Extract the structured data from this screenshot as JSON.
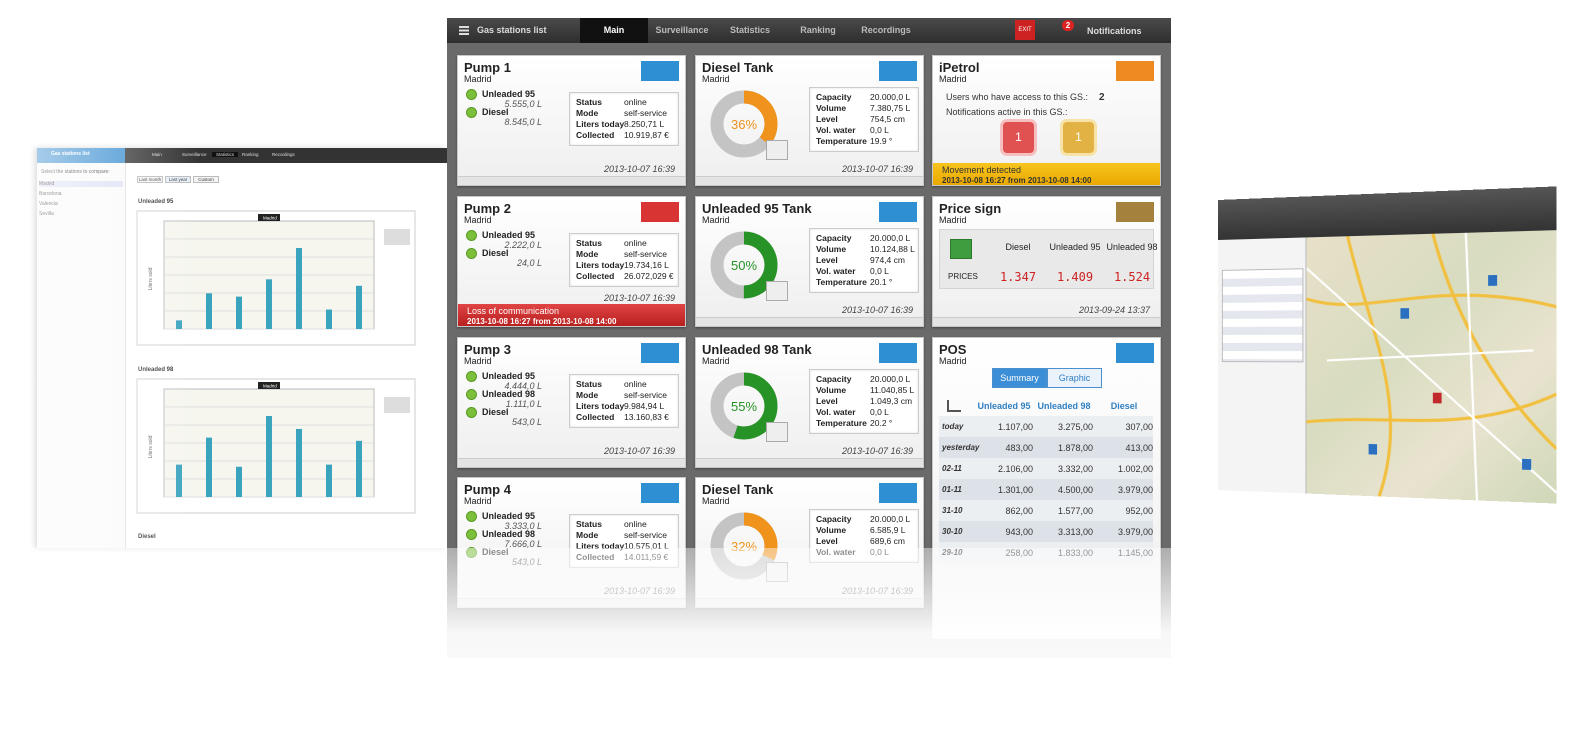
{
  "nav": {
    "title": "Gas stations list",
    "tabs": [
      "Main",
      "Surveillance",
      "Statistics",
      "Ranking",
      "Recordings"
    ],
    "exit": "EXIT",
    "notification_count": 2,
    "notifications": "Notifications"
  },
  "pumps": [
    {
      "title": "Pump 1",
      "location": "Madrid",
      "fuels": [
        {
          "name": "Unleaded 95",
          "amount": "5.555,0 L"
        },
        {
          "name": "Diesel",
          "amount": "8.545,0 L"
        }
      ],
      "stats": [
        [
          "Status",
          "online"
        ],
        [
          "Mode",
          "self-service"
        ],
        [
          "Liters today",
          "8.250,71 L"
        ],
        [
          "Collected",
          "10.919,87 €"
        ]
      ],
      "date": "2013-10-07 16:39"
    },
    {
      "title": "Pump 2",
      "location": "Madrid",
      "fuels": [
        {
          "name": "Unleaded 95",
          "amount": "2.222,0 L"
        },
        {
          "name": "Diesel",
          "amount": "24,0 L"
        }
      ],
      "stats": [
        [
          "Status",
          "online"
        ],
        [
          "Mode",
          "self-service"
        ],
        [
          "Liters today",
          "19.734,16 L"
        ],
        [
          "Collected",
          "26.072,029 €"
        ]
      ],
      "date": "2013-10-07 16:39",
      "alert": "Loss of communication",
      "alert_detail": "2013-10-08 16:27 from 2013-10-08 14:00"
    },
    {
      "title": "Pump 3",
      "location": "Madrid",
      "fuels": [
        {
          "name": "Unleaded 95",
          "amount": "4.444,0 L"
        },
        {
          "name": "Unleaded 98",
          "amount": "1.111,0 L"
        },
        {
          "name": "Diesel",
          "amount": "543,0 L"
        }
      ],
      "stats": [
        [
          "Status",
          "online"
        ],
        [
          "Mode",
          "self-service"
        ],
        [
          "Liters today",
          "9.984,94 L"
        ],
        [
          "Collected",
          "13.160,83 €"
        ]
      ],
      "date": "2013-10-07 16:39"
    },
    {
      "title": "Pump 4",
      "location": "Madrid",
      "fuels": [
        {
          "name": "Unleaded 95",
          "amount": "3.333,0 L"
        },
        {
          "name": "Unleaded 98",
          "amount": "7.666,0 L"
        },
        {
          "name": "Diesel",
          "amount": "543,0 L"
        }
      ],
      "stats": [
        [
          "Status",
          "online"
        ],
        [
          "Mode",
          "self-service"
        ],
        [
          "Liters today",
          "10.575,01 L"
        ],
        [
          "Collected",
          "14.011,59 €"
        ]
      ],
      "date": "2013-10-07 16:39"
    }
  ],
  "tanks": [
    {
      "title": "Diesel Tank",
      "location": "Madrid",
      "percent": 36,
      "percent_label": "36%",
      "color": "#ef931c",
      "stats": [
        [
          "Capacity",
          "20.000,0 L"
        ],
        [
          "Volume",
          "7.380,75 L"
        ],
        [
          "Level",
          "754,5 cm"
        ],
        [
          "Vol. water",
          "0,0 L"
        ],
        [
          "Temperature",
          "19.9 °"
        ]
      ],
      "date": "2013-10-07 16:39"
    },
    {
      "title": "Unleaded 95 Tank",
      "location": "Madrid",
      "percent": 50,
      "percent_label": "50%",
      "color": "#279327",
      "stats": [
        [
          "Capacity",
          "20.000,0 L"
        ],
        [
          "Volume",
          "10.124,88 L"
        ],
        [
          "Level",
          "974,4 cm"
        ],
        [
          "Vol. water",
          "0,0 L"
        ],
        [
          "Temperature",
          "20.1 °"
        ]
      ],
      "date": "2013-10-07 16:39"
    },
    {
      "title": "Unleaded 98 Tank",
      "location": "Madrid",
      "percent": 55,
      "percent_label": "55%",
      "color": "#279327",
      "stats": [
        [
          "Capacity",
          "20.000,0 L"
        ],
        [
          "Volume",
          "11.040,85 L"
        ],
        [
          "Level",
          "1.049,3 cm"
        ],
        [
          "Vol. water",
          "0,0 L"
        ],
        [
          "Temperature",
          "20.2 °"
        ]
      ],
      "date": "2013-10-07 16:39"
    },
    {
      "title": "Diesel Tank",
      "location": "Madrid",
      "percent": 32,
      "percent_label": "32%",
      "color": "#ef931c",
      "stats": [
        [
          "Capacity",
          "20.000,0 L"
        ],
        [
          "Volume",
          "6.585,9 L"
        ],
        [
          "Level",
          "689,6 cm"
        ],
        [
          "Vol. water",
          "0,0 L"
        ]
      ],
      "date": "2013-10-07 16:39"
    }
  ],
  "ipetrol": {
    "title": "iPetrol",
    "location": "Madrid",
    "users_label": "Users who have access to this GS.:",
    "users": 2,
    "notifications_label": "Notifications active in this GS.:",
    "badges": [
      1,
      1
    ],
    "alert": "Movement detected",
    "alert_detail": "2013-10-08 16:27 from 2013-10-08 14:00"
  },
  "price_sign": {
    "title": "Price sign",
    "location": "Madrid",
    "columns": [
      "Diesel",
      "Unleaded 95",
      "Unleaded 98"
    ],
    "row_label": "PRICES",
    "prices": [
      "1.347",
      "1.409",
      "1.524"
    ],
    "date": "2013-09-24 13:37"
  },
  "pos": {
    "title": "POS",
    "location": "Madrid",
    "buttons": [
      "Summary",
      "Graphic"
    ],
    "columns": [
      "Unleaded 95",
      "Unleaded 98",
      "Diesel"
    ],
    "rows": [
      [
        "today",
        "1.107,00",
        "3.275,00",
        "307,00"
      ],
      [
        "yesterday",
        "483,00",
        "1.878,00",
        "413,00"
      ],
      [
        "02-11",
        "2.106,00",
        "3.332,00",
        "1.002,00"
      ],
      [
        "01-11",
        "1.301,00",
        "4.500,00",
        "3.979,00"
      ],
      [
        "31-10",
        "862,00",
        "1.577,00",
        "952,00"
      ],
      [
        "30-10",
        "943,00",
        "3.313,00",
        "3.979,00"
      ],
      [
        "29-10",
        "258,00",
        "1.833,00",
        "1.145,00"
      ]
    ]
  },
  "left_panel": {
    "title": "Gas stations list",
    "tabs": [
      "Main",
      "Surveillance",
      "Statistics",
      "Ranking",
      "Recordings"
    ],
    "prompt": "Select the stations to compare:",
    "stations": [
      "Madrid",
      "Barcelona",
      "Valencia",
      "Sevilla"
    ],
    "periods": [
      "Last month",
      "Last year",
      "Custom"
    ],
    "y_label": "Liters sold",
    "ylim": [
      0,
      100
    ],
    "charts": [
      {
        "title": "Unleaded 95",
        "legend": "Madrid",
        "values": [
          8,
          33,
          30,
          46,
          75,
          18,
          40
        ]
      },
      {
        "title": "Unleaded 98",
        "legend": "Madrid",
        "values": [
          30,
          55,
          28,
          75,
          63,
          30,
          52
        ]
      }
    ],
    "next_chart": "Diesel"
  }
}
